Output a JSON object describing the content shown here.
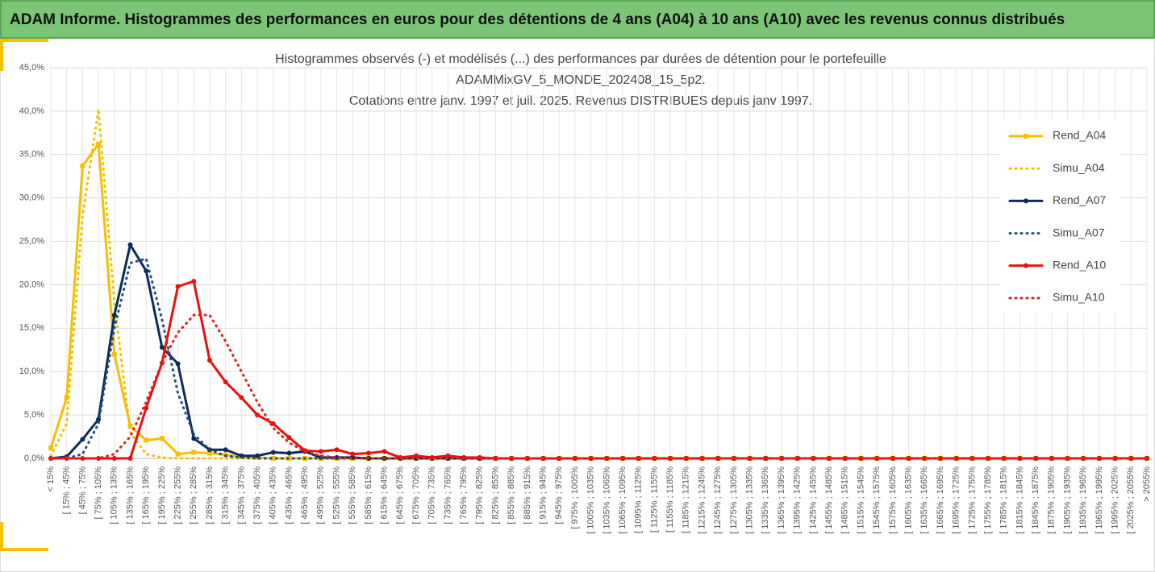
{
  "header": {
    "title": "ADAM Informe. Histogrammes des performances en euros pour des détentions de 4 ans (A04) à 10 ans (A10) avec les revenus connus distribués"
  },
  "chart_data": {
    "type": "line",
    "title": [
      "Histogrammes observés (-) et modélisés (...) des performances par durées de détention pour le portefeuille",
      "ADAMMixGV_5_MONDE_202408_15_5p2.",
      "Cotations entre janv. 1997 et juil. 2025. Revenus DISTRIBUES depuis janv 1997."
    ],
    "categories": [
      "< 15%",
      "[ 15% ; 45%",
      "[ 45% ; 75%",
      "[ 75% ; 105%",
      "[ 105% ; 135%",
      "[ 135% ; 165%",
      "[ 165% ; 195%",
      "[ 195% ; 225%",
      "[ 225% ; 255%",
      "[ 255% ; 285%",
      "[ 285% ; 315%",
      "[ 315% ; 345%",
      "[ 345% ; 375%",
      "[ 375% ; 405%",
      "[ 405% ; 435%",
      "[ 435% ; 465%",
      "[ 465% ; 495%",
      "[ 495% ; 525%",
      "[ 525% ; 555%",
      "[ 555% ; 585%",
      "[ 585% ; 615%",
      "[ 615% ; 645%",
      "[ 645% ; 675%",
      "[ 675% ; 705%",
      "[ 705% ; 735%",
      "[ 735% ; 765%",
      "[ 765% ; 795%",
      "[ 795% ; 825%",
      "[ 825% ; 855%",
      "[ 855% ; 885%",
      "[ 885% ; 915%",
      "[ 915% ; 945%",
      "[ 945% ; 975%",
      "[ 975% ; 1005%",
      "[ 1005% ; 1035%",
      "[ 1035% ; 1065%",
      "[ 1065% ; 1095%",
      "[ 1095% ; 1125%",
      "[ 1125% ; 1155%",
      "[ 1155% ; 1185%",
      "[ 1185% ; 1215%",
      "[ 1215% ; 1245%",
      "[ 1245% ; 1275%",
      "[ 1275% ; 1305%",
      "[ 1305% ; 1335%",
      "[ 1335% ; 1365%",
      "[ 1365% ; 1395%",
      "[ 1395% ; 1425%",
      "[ 1425% ; 1455%",
      "[ 1455% ; 1485%",
      "[ 1485% ; 1515%",
      "[ 1515% ; 1545%",
      "[ 1545% ; 1575%",
      "[ 1575% ; 1605%",
      "[ 1605% ; 1635%",
      "[ 1635% ; 1665%",
      "[ 1665% ; 1695%",
      "[ 1695% ; 1725%",
      "[ 1725% ; 1755%",
      "[ 1755% ; 1785%",
      "[ 1785% ; 1815%",
      "[ 1815% ; 1845%",
      "[ 1845% ; 1875%",
      "[ 1875% ; 1905%",
      "[ 1905% ; 1935%",
      "[ 1935% ; 1965%",
      "[ 1965% ; 1995%",
      "[ 1995% ; 2025%",
      "[ 2025% ; 2055%",
      "> 2055%"
    ],
    "series": [
      {
        "name": "Rend_A04",
        "color": "#f5c000",
        "style": "solid",
        "marker": "square",
        "values": [
          1.2,
          7.0,
          33.7,
          36.2,
          12.0,
          3.7,
          2.1,
          2.3,
          0.5,
          0.7,
          0.6,
          0.4,
          0.2,
          0.1,
          0,
          0,
          0,
          0,
          0,
          0,
          0,
          0,
          0,
          0,
          0,
          0,
          0,
          0,
          0,
          0,
          0,
          0,
          0,
          0,
          0,
          0,
          0,
          0,
          0,
          0,
          0,
          0,
          0,
          0,
          0,
          0,
          0,
          0,
          0,
          0,
          0,
          0,
          0,
          0,
          0,
          0,
          0,
          0,
          0,
          0,
          0,
          0,
          0,
          0,
          0,
          0,
          0,
          0,
          0,
          0
        ]
      },
      {
        "name": "Simu_A04",
        "color": "#f5c000",
        "style": "dotted",
        "marker": null,
        "values": [
          0.3,
          4.0,
          28.0,
          40.2,
          18.0,
          3.0,
          0.5,
          0.1,
          0,
          0,
          0,
          0,
          0,
          0,
          0,
          0,
          0,
          0,
          0,
          0,
          0,
          0,
          0,
          0,
          0,
          0,
          0,
          0,
          0,
          0,
          0,
          0,
          0,
          0,
          0,
          0,
          0,
          0,
          0,
          0,
          0,
          0,
          0,
          0,
          0,
          0,
          0,
          0,
          0,
          0,
          0,
          0,
          0,
          0,
          0,
          0,
          0,
          0,
          0,
          0,
          0,
          0,
          0,
          0,
          0,
          0,
          0,
          0,
          0,
          0
        ]
      },
      {
        "name": "Rend_A07",
        "color": "#0e2a5a",
        "style": "solid",
        "marker": "circle",
        "values": [
          0,
          0.2,
          2.2,
          4.5,
          16.5,
          24.6,
          21.6,
          12.8,
          10.9,
          2.3,
          1.0,
          1.0,
          0.3,
          0.3,
          0.7,
          0.6,
          0.8,
          0.1,
          0.1,
          0.1,
          0,
          0,
          0,
          0,
          0,
          0,
          0,
          0,
          0,
          0,
          0,
          0,
          0,
          0,
          0,
          0,
          0,
          0,
          0,
          0,
          0,
          0,
          0,
          0,
          0,
          0,
          0,
          0,
          0,
          0,
          0,
          0,
          0,
          0,
          0,
          0,
          0,
          0,
          0,
          0,
          0,
          0,
          0,
          0,
          0,
          0,
          0,
          0,
          0,
          0
        ]
      },
      {
        "name": "Simu_A07",
        "color": "#1f4e79",
        "style": "dotted",
        "marker": null,
        "values": [
          0,
          0,
          0.5,
          4.0,
          15.0,
          22.5,
          23.0,
          16.0,
          7.5,
          2.8,
          1.0,
          0.3,
          0.1,
          0,
          0,
          0,
          0,
          0,
          0,
          0,
          0,
          0,
          0,
          0,
          0,
          0,
          0,
          0,
          0,
          0,
          0,
          0,
          0,
          0,
          0,
          0,
          0,
          0,
          0,
          0,
          0,
          0,
          0,
          0,
          0,
          0,
          0,
          0,
          0,
          0,
          0,
          0,
          0,
          0,
          0,
          0,
          0,
          0,
          0,
          0,
          0,
          0,
          0,
          0,
          0,
          0,
          0,
          0,
          0,
          0
        ]
      },
      {
        "name": "Rend_A10",
        "color": "#e81010",
        "style": "solid",
        "marker": "circle",
        "values": [
          0,
          0,
          0,
          0,
          0,
          0,
          5.8,
          11.0,
          19.8,
          20.4,
          11.3,
          8.8,
          7.0,
          5.0,
          4.0,
          2.4,
          0.9,
          0.8,
          1.0,
          0.5,
          0.6,
          0.8,
          0.1,
          0.3,
          0.1,
          0.3,
          0.1,
          0.1,
          0,
          0,
          0,
          0,
          0,
          0,
          0,
          0,
          0,
          0,
          0,
          0,
          0,
          0,
          0,
          0,
          0,
          0,
          0,
          0,
          0,
          0,
          0,
          0,
          0,
          0,
          0,
          0,
          0,
          0,
          0,
          0,
          0,
          0,
          0,
          0,
          0,
          0,
          0,
          0,
          0,
          0
        ]
      },
      {
        "name": "Simu_A10",
        "color": "#e02020",
        "style": "dotted",
        "marker": null,
        "values": [
          0,
          0,
          0,
          0,
          0.5,
          2.5,
          6.5,
          11.0,
          14.5,
          16.5,
          16.5,
          13.5,
          10.0,
          6.5,
          3.5,
          1.8,
          0.8,
          0.3,
          0.1,
          0,
          0,
          0,
          0,
          0,
          0,
          0,
          0,
          0,
          0,
          0,
          0,
          0,
          0,
          0,
          0,
          0,
          0,
          0,
          0,
          0,
          0,
          0,
          0,
          0,
          0,
          0,
          0,
          0,
          0,
          0,
          0,
          0,
          0,
          0,
          0,
          0,
          0,
          0,
          0,
          0,
          0,
          0,
          0,
          0,
          0,
          0,
          0,
          0,
          0,
          0
        ]
      }
    ],
    "ylim": [
      0,
      45
    ],
    "yticks": [
      {
        "value": 0,
        "label": "0,0%"
      },
      {
        "value": 5,
        "label": "5,0%"
      },
      {
        "value": 10,
        "label": "10,0%"
      },
      {
        "value": 15,
        "label": "15,0%"
      },
      {
        "value": 20,
        "label": "20,0%"
      },
      {
        "value": 25,
        "label": "25,0%"
      },
      {
        "value": 30,
        "label": "30,0%"
      },
      {
        "value": 35,
        "label": "35,0%"
      },
      {
        "value": 40,
        "label": "40,0%"
      },
      {
        "value": 45,
        "label": "45,0%"
      }
    ],
    "grid": true,
    "legend": "right"
  }
}
